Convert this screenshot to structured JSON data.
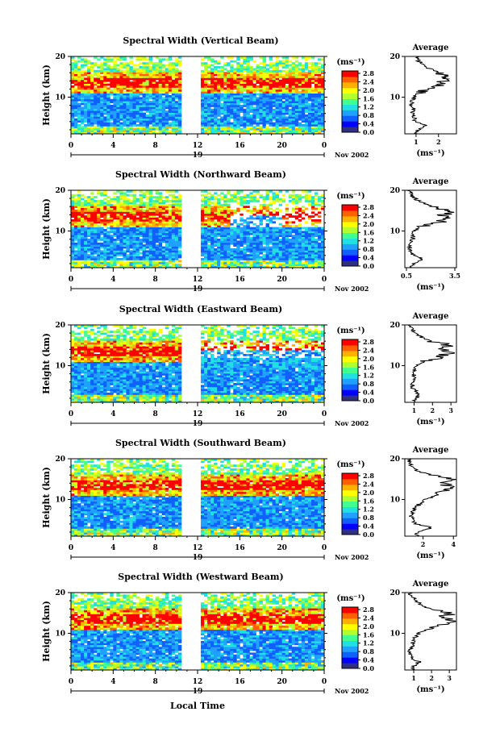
{
  "footer": {
    "xlabel": "Local Time"
  },
  "common": {
    "ylabel": "Height (km)",
    "y_ticks": [
      "20",
      "10"
    ],
    "x_ticks": [
      "0",
      "4",
      "8",
      "12",
      "16",
      "20",
      "0"
    ],
    "day_label": "19",
    "month_label": "Nov 2002",
    "cb_unit": "(ms⁻¹)",
    "cb_ticks": [
      "2.8",
      "2.4",
      "2.0",
      "1.6",
      "1.2",
      "0.8",
      "0.4",
      "0.0"
    ],
    "avg_title": "Average",
    "avg_unit": "(ms⁻¹)",
    "avg_y_ticks": [
      "20",
      "10"
    ]
  },
  "colormap": [
    "#303080",
    "#0000ff",
    "#1060ff",
    "#20a0ff",
    "#20e0e0",
    "#40ff90",
    "#b0ff30",
    "#ffff00",
    "#ffb000",
    "#ff6000",
    "#ff0000"
  ],
  "chart_data": [
    {
      "type": "heatmap",
      "title": "Spectral Width (Vertical Beam)",
      "x_range": [
        0,
        24
      ],
      "y_range": [
        1,
        20
      ],
      "gap": [
        10.5,
        12.2
      ],
      "clim": [
        0.0,
        2.8
      ],
      "profile": {
        "type": "line",
        "title": "Average",
        "x_ticks": [
          "1",
          "2"
        ],
        "x_range": [
          0.5,
          2.8
        ],
        "y_range": [
          1,
          20
        ],
        "x": [
          1.0,
          1.1,
          1.4,
          1.0,
          0.9,
          0.8,
          0.9,
          0.8,
          0.8,
          0.9,
          1.1,
          1.5,
          2.0,
          2.3,
          2.4,
          2.0,
          1.6,
          1.3,
          1.1,
          1.0
        ],
        "y": [
          1,
          2,
          3,
          4,
          5,
          6,
          7,
          8,
          9,
          10,
          11,
          12,
          13,
          14,
          15,
          16,
          17,
          18,
          19,
          20
        ]
      }
    },
    {
      "type": "heatmap",
      "title": "Spectral Width (Northward Beam)",
      "x_range": [
        0,
        24
      ],
      "y_range": [
        1,
        20
      ],
      "gap": [
        10.5,
        12.2
      ],
      "clim": [
        0.0,
        2.8
      ],
      "profile": {
        "type": "line",
        "title": "Average",
        "x_ticks": [
          "0.5",
          "3.5"
        ],
        "x_range": [
          0.4,
          3.6
        ],
        "y_range": [
          1,
          20
        ],
        "x": [
          0.8,
          1.0,
          1.6,
          0.9,
          0.7,
          0.7,
          0.8,
          0.9,
          0.9,
          1.0,
          1.4,
          2.3,
          3.2,
          2.8,
          3.3,
          2.0,
          1.5,
          1.0,
          0.8,
          0.6
        ],
        "y": [
          1,
          2,
          3,
          4,
          5,
          6,
          7,
          8,
          9,
          10,
          11,
          12,
          13,
          14,
          15,
          16,
          17,
          18,
          19,
          20
        ]
      }
    },
    {
      "type": "heatmap",
      "title": "Spectral Width (Eastward Beam)",
      "x_range": [
        0,
        24
      ],
      "y_range": [
        1,
        20
      ],
      "gap": [
        10.5,
        12.2
      ],
      "clim": [
        0.0,
        2.8
      ],
      "profile": {
        "type": "line",
        "title": "Average",
        "x_ticks": [
          "1",
          "2",
          "3"
        ],
        "x_range": [
          0.5,
          3.3
        ],
        "y_range": [
          1,
          20
        ],
        "x": [
          1.0,
          1.1,
          1.3,
          1.0,
          0.9,
          0.9,
          1.0,
          1.0,
          1.0,
          1.2,
          1.6,
          2.3,
          2.9,
          2.5,
          2.9,
          2.0,
          1.4,
          1.1,
          0.9,
          0.8
        ],
        "y": [
          1,
          2,
          3,
          4,
          5,
          6,
          7,
          8,
          9,
          10,
          11,
          12,
          13,
          14,
          15,
          16,
          17,
          18,
          19,
          20
        ]
      }
    },
    {
      "type": "heatmap",
      "title": "Spectral Width (Southward Beam)",
      "x_range": [
        0,
        24
      ],
      "y_range": [
        1,
        20
      ],
      "gap": [
        10.5,
        12.2
      ],
      "clim": [
        0.0,
        2.8
      ],
      "profile": {
        "type": "line",
        "title": "Average",
        "x_ticks": [
          "2",
          "4"
        ],
        "x_range": [
          0.8,
          4.2
        ],
        "y_range": [
          1,
          20
        ],
        "x": [
          1.5,
          1.7,
          2.6,
          1.6,
          1.3,
          1.2,
          1.3,
          1.5,
          1.8,
          2.2,
          2.8,
          3.4,
          3.7,
          3.5,
          3.8,
          2.5,
          1.6,
          1.3,
          1.1,
          1.0
        ],
        "y": [
          1,
          2,
          3,
          4,
          5,
          6,
          7,
          8,
          9,
          10,
          11,
          12,
          13,
          14,
          15,
          16,
          17,
          18,
          19,
          20
        ]
      }
    },
    {
      "type": "heatmap",
      "title": "Spectral Width (Westward Beam)",
      "x_range": [
        0,
        24
      ],
      "y_range": [
        1,
        20
      ],
      "gap": [
        10.5,
        12.2
      ],
      "clim": [
        0.0,
        2.8
      ],
      "profile": {
        "type": "line",
        "title": "Average",
        "x_ticks": [
          "1",
          "2",
          "3"
        ],
        "x_range": [
          0.5,
          3.4
        ],
        "y_range": [
          1,
          20
        ],
        "x": [
          0.9,
          1.0,
          1.3,
          0.9,
          0.8,
          0.8,
          0.9,
          1.0,
          1.1,
          1.3,
          1.8,
          2.5,
          3.0,
          2.6,
          3.1,
          1.9,
          1.4,
          1.1,
          0.9,
          0.8
        ],
        "y": [
          1,
          2,
          3,
          4,
          5,
          6,
          7,
          8,
          9,
          10,
          11,
          12,
          13,
          14,
          15,
          16,
          17,
          18,
          19,
          20
        ]
      }
    }
  ]
}
